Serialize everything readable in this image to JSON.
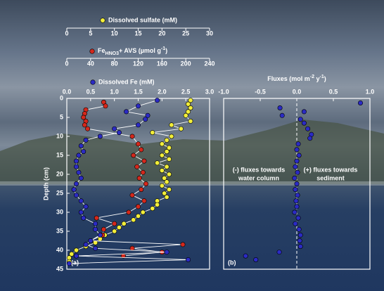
{
  "chart_data": [
    {
      "type": "scatter",
      "panel_label": "(a)",
      "y_label": "Depth (cm)",
      "ylim": [
        0,
        45
      ],
      "yticks": [
        0,
        5,
        10,
        15,
        20,
        25,
        30,
        35,
        40,
        45
      ],
      "y_inverted": true,
      "connect": true,
      "series": [
        {
          "name": "Dissolved sulfate (mM)",
          "color": "#f2ee3a",
          "xlim": [
            0,
            30
          ],
          "xticks": [
            0,
            5,
            10,
            15,
            20,
            25,
            30
          ],
          "y": [
            0.5,
            1.5,
            2.5,
            3.5,
            4.5,
            6,
            7,
            8,
            9,
            10,
            11,
            12,
            13,
            14,
            15,
            16,
            17,
            18,
            19,
            20,
            21,
            22,
            23,
            24,
            25,
            26,
            27,
            28,
            29,
            30,
            31,
            32,
            33,
            34,
            35,
            36,
            37,
            38,
            39,
            40,
            41,
            42,
            43
          ],
          "x": [
            26,
            25.5,
            26,
            25.5,
            25,
            26,
            22,
            24,
            18,
            22,
            21,
            20,
            21.5,
            21,
            20,
            21.5,
            19,
            21,
            20,
            21.5,
            20.5,
            21,
            20,
            21.5,
            20.5,
            21,
            19,
            19,
            18,
            16,
            15,
            14,
            12,
            11,
            10,
            8,
            7,
            6,
            4,
            2,
            1,
            0.5,
            0.5
          ]
        },
        {
          "name_parts": [
            "Fe",
            "HNO3",
            "+ AVS (µmol g",
            "-1",
            ")"
          ],
          "color": "#d4281c",
          "xlim": [
            0,
            240
          ],
          "xticks": [
            0,
            40,
            80,
            120,
            160,
            200,
            240
          ],
          "y": [
            1,
            2,
            3,
            4,
            5,
            6,
            7,
            8,
            10,
            12,
            13.5,
            15,
            16.5,
            18,
            19.5,
            21,
            22.5,
            24,
            25.5,
            27,
            28.5,
            30,
            31.5,
            33,
            34.5,
            36,
            37.5,
            38.5,
            39.5,
            40.5,
            41.5
          ],
          "x": [
            62,
            65,
            32,
            30,
            28,
            32,
            30,
            35,
            110,
            120,
            125,
            112,
            130,
            118,
            128,
            122,
            133,
            125,
            110,
            130,
            120,
            104,
            50,
            80,
            62,
            60,
            40,
            195,
            110,
            160,
            95
          ]
        },
        {
          "name": "Dissolved Fe (mM)",
          "color": "#2b2bc4",
          "xlim": [
            0,
            3
          ],
          "xticks": [
            {
              "value": 0,
              "label": "0.0"
            },
            0.5,
            {
              "value": 1,
              "label": "1.0"
            },
            1.5,
            {
              "value": 2,
              "label": "2.0"
            },
            2.5,
            {
              "value": 3,
              "label": "3.0"
            }
          ],
          "y": [
            0.5,
            2,
            3.5,
            4.5,
            5.5,
            7,
            8,
            9,
            10,
            11,
            12.5,
            14,
            15,
            16.5,
            18,
            19.5,
            21,
            22.5,
            24,
            25.5,
            27,
            28.5,
            30,
            31.5,
            33,
            34.5,
            36,
            37.5,
            38.5,
            39.5,
            40.5,
            41.5,
            42.5,
            43.5
          ],
          "x": [
            1.9,
            1.5,
            1.25,
            1.7,
            1.65,
            1.5,
            1.0,
            1.1,
            0.7,
            0.4,
            0.3,
            0.35,
            0.25,
            0.2,
            0.2,
            0.25,
            0.3,
            0.2,
            0.15,
            0.2,
            0.3,
            0.4,
            0.3,
            0.35,
            0.6,
            0.6,
            0.7,
            0.5,
            0.4,
            0.6,
            2.1,
            0.2,
            2.55,
            0.05
          ]
        }
      ]
    },
    {
      "type": "scatter",
      "panel_label": "(b)",
      "x_label_parts": [
        "Fluxes (mol m",
        "-2",
        " y",
        "-1",
        ")"
      ],
      "xlim": [
        -1,
        1
      ],
      "xticks": [
        {
          "value": -1,
          "label": "-1.0"
        },
        -0.5,
        {
          "value": 0,
          "label": "0.0"
        },
        0.5,
        {
          "value": 1,
          "label": "1.0"
        }
      ],
      "ylim": [
        0,
        45
      ],
      "y_inverted": true,
      "reference_x": 0,
      "annotations": [
        [
          "(-) fluxes towards",
          "water column"
        ],
        [
          "(+) fluxes towards",
          "sediment"
        ]
      ],
      "series": [
        {
          "color": "#2b2bc4",
          "y": [
            1.2,
            2.5,
            3.5,
            4.5,
            5.5,
            6.5,
            8,
            9.5,
            10.5,
            12,
            13.5,
            15,
            16.5,
            18,
            19.5,
            21,
            22.5,
            24,
            25.5,
            27,
            28.5,
            30,
            31.5,
            33,
            34.5,
            36,
            37.5,
            39,
            40.5,
            41.5,
            42.5
          ],
          "x": [
            0.87,
            -0.23,
            0.1,
            -0.2,
            0.05,
            0.1,
            0.15,
            0.2,
            0.18,
            0.02,
            0,
            0.03,
            0,
            -0.02,
            0.01,
            -0.03,
            0,
            -0.02,
            0.01,
            -0.01,
            0,
            -0.03,
            0.02,
            -0.02,
            0.03,
            0.05,
            0.04,
            0.05,
            -0.24,
            -0.7,
            -0.56
          ]
        }
      ]
    }
  ]
}
